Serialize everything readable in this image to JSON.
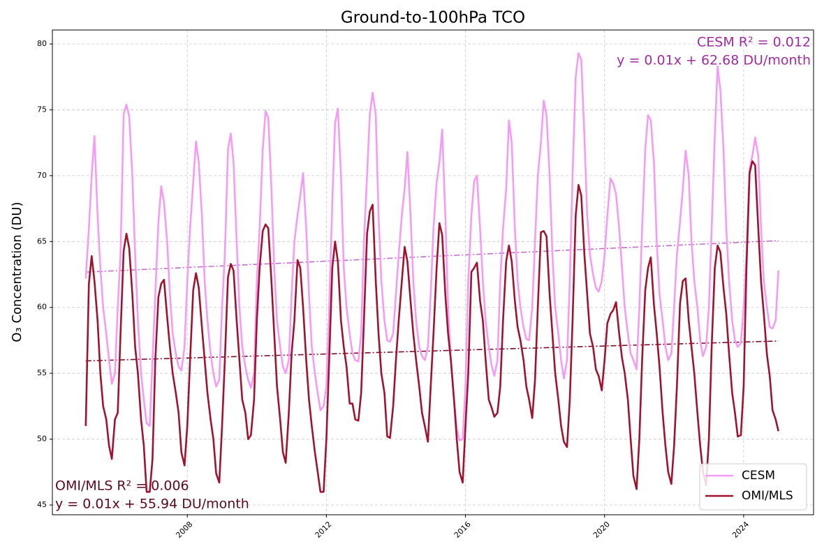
{
  "chart_data": {
    "type": "line",
    "title": "Ground-to-100hPa TCO",
    "y_label": "O₃ Concentration (DU)",
    "xlim": [
      2004.12,
      2026.01
    ],
    "xticks": [
      2008,
      2012,
      2016,
      2020,
      2024
    ],
    "ylim": [
      44.26,
      81.06
    ],
    "yticks": [
      45,
      50,
      55,
      60,
      65,
      70,
      75,
      80
    ],
    "grid": true,
    "legend": "lower right",
    "x": [
      2005.08,
      2005.17,
      2005.25,
      2005.33,
      2005.42,
      2005.5,
      2005.58,
      2005.67,
      2005.75,
      2005.83,
      2005.92,
      2006.0,
      2006.08,
      2006.17,
      2006.25,
      2006.33,
      2006.42,
      2006.5,
      2006.58,
      2006.67,
      2006.75,
      2006.83,
      2006.92,
      2007.0,
      2007.08,
      2007.17,
      2007.25,
      2007.33,
      2007.42,
      2007.5,
      2007.58,
      2007.67,
      2007.75,
      2007.83,
      2007.92,
      2008.0,
      2008.08,
      2008.17,
      2008.25,
      2008.33,
      2008.42,
      2008.5,
      2008.58,
      2008.67,
      2008.75,
      2008.83,
      2008.92,
      2009.0,
      2009.08,
      2009.17,
      2009.25,
      2009.33,
      2009.42,
      2009.5,
      2009.58,
      2009.67,
      2009.75,
      2009.83,
      2009.92,
      2010.0,
      2010.08,
      2010.17,
      2010.25,
      2010.33,
      2010.42,
      2010.5,
      2010.58,
      2010.67,
      2010.75,
      2010.83,
      2010.92,
      2011.0,
      2011.08,
      2011.17,
      2011.25,
      2011.33,
      2011.42,
      2011.5,
      2011.58,
      2011.67,
      2011.75,
      2011.83,
      2011.92,
      2012.0,
      2012.08,
      2012.17,
      2012.25,
      2012.33,
      2012.42,
      2012.5,
      2012.58,
      2012.67,
      2012.75,
      2012.83,
      2012.92,
      2013.0,
      2013.08,
      2013.17,
      2013.25,
      2013.33,
      2013.42,
      2013.5,
      2013.58,
      2013.67,
      2013.75,
      2013.83,
      2013.92,
      2014.0,
      2014.08,
      2014.17,
      2014.25,
      2014.33,
      2014.42,
      2014.5,
      2014.58,
      2014.67,
      2014.75,
      2014.83,
      2014.92,
      2015.0,
      2015.08,
      2015.17,
      2015.25,
      2015.33,
      2015.42,
      2015.5,
      2015.58,
      2015.67,
      2015.75,
      2015.83,
      2015.92,
      2016.0,
      2016.08,
      2016.17,
      2016.25,
      2016.33,
      2016.42,
      2016.5,
      2016.58,
      2016.67,
      2016.75,
      2016.83,
      2016.92,
      2017.0,
      2017.08,
      2017.17,
      2017.25,
      2017.33,
      2017.42,
      2017.5,
      2017.58,
      2017.67,
      2017.75,
      2017.83,
      2017.92,
      2018.0,
      2018.08,
      2018.17,
      2018.25,
      2018.33,
      2018.42,
      2018.5,
      2018.58,
      2018.67,
      2018.75,
      2018.83,
      2018.92,
      2019.0,
      2019.08,
      2019.17,
      2019.25,
      2019.33,
      2019.42,
      2019.5,
      2019.58,
      2019.67,
      2019.75,
      2019.83,
      2019.92,
      2020.0,
      2020.08,
      2020.17,
      2020.25,
      2020.33,
      2020.42,
      2020.5,
      2020.58,
      2020.67,
      2020.75,
      2020.83,
      2020.92,
      2021.0,
      2021.08,
      2021.17,
      2021.25,
      2021.33,
      2021.42,
      2021.5,
      2021.58,
      2021.67,
      2021.75,
      2021.83,
      2021.92,
      2022.0,
      2022.08,
      2022.17,
      2022.25,
      2022.33,
      2022.42,
      2022.5,
      2022.58,
      2022.67,
      2022.75,
      2022.83,
      2022.92,
      2023.0,
      2023.08,
      2023.17,
      2023.25,
      2023.33,
      2023.42,
      2023.5,
      2023.58,
      2023.67,
      2023.75,
      2023.83,
      2023.92,
      2024.0,
      2024.08,
      2024.17,
      2024.25,
      2024.33,
      2024.42,
      2024.5,
      2024.58,
      2024.67,
      2024.75,
      2024.83,
      2024.92,
      2025.0
    ],
    "series": [
      {
        "name": "CESM",
        "color": "#f59bf5",
        "values": [
          62.2,
          66,
          70,
          73.0,
          67,
          63,
          60,
          58,
          56,
          54.2,
          55,
          60,
          64,
          74.7,
          75.4,
          74.5,
          70,
          64,
          59,
          55,
          53,
          51.2,
          51.0,
          56,
          61,
          66.5,
          69.2,
          68,
          65,
          61,
          58,
          56.5,
          55.5,
          55.2,
          57,
          62,
          66,
          69.5,
          72.6,
          71,
          67,
          62,
          59,
          56.5,
          55,
          54,
          54.5,
          60,
          64,
          72,
          73.2,
          71,
          65,
          60,
          57,
          55.5,
          54.5,
          53.9,
          55,
          62,
          66,
          72,
          74.9,
          74.4,
          69,
          63,
          59,
          57,
          55.5,
          55,
          56,
          61,
          65,
          67,
          68.5,
          70.2,
          66,
          61,
          57,
          55,
          53.5,
          52.2,
          52.5,
          54,
          60,
          68,
          74,
          75.1,
          70,
          63,
          60,
          58,
          56.5,
          56,
          55.9,
          58,
          65,
          70,
          74.7,
          76.3,
          74.6,
          67,
          62,
          59,
          57.5,
          57.4,
          58,
          61,
          64,
          67,
          69,
          71.8,
          67,
          62,
          59,
          57,
          56.3,
          56,
          57,
          61,
          66,
          69.5,
          71,
          73.5,
          67,
          60,
          56,
          53,
          50.8,
          49.9,
          50,
          54,
          62,
          67,
          69.6,
          70,
          66,
          62,
          59,
          57,
          55.6,
          54.8,
          56,
          62,
          66,
          69,
          74.2,
          72.5,
          66,
          62,
          60,
          58.5,
          57.6,
          57.5,
          60,
          65,
          70,
          72.5,
          75.7,
          74.6,
          70,
          64,
          60,
          58,
          56,
          54.6,
          56,
          62,
          70,
          77.5,
          79.3,
          78.8,
          73,
          67,
          64,
          62.5,
          61.5,
          61.2,
          62,
          64,
          67,
          69.8,
          69.4,
          68.6,
          66,
          63,
          60,
          58,
          56.5,
          56,
          55.3,
          60,
          66,
          72,
          74.6,
          74.2,
          71,
          65,
          61,
          59,
          57,
          56,
          56.5,
          60,
          64,
          66.5,
          69,
          71.9,
          70,
          65,
          62,
          60,
          57.5,
          56.3,
          57,
          60,
          66,
          73,
          78.3,
          76.5,
          72,
          66,
          62,
          59,
          57.5,
          57,
          57.3,
          60,
          64,
          70.5,
          71.5,
          72.9,
          71.5,
          66,
          62,
          60,
          58.5,
          58.4,
          59,
          62.8
        ],
        "trend": {
          "x": [
            2005.08,
            2025.0
          ],
          "values": [
            62.68,
            65.07
          ],
          "color": "#c36ec8",
          "r2_label": "CESM R² = 0.012",
          "equation": "y = 0.01x + 62.68 DU/month",
          "text_color": "#a02ca0"
        }
      },
      {
        "name": "OMI/MLS",
        "color": "#a0122e",
        "values": [
          51,
          61.8,
          63.9,
          62,
          59,
          55,
          52.5,
          51.5,
          49.5,
          48.5,
          51.5,
          52,
          58,
          64.3,
          65.6,
          64.5,
          61,
          57,
          55,
          51.5,
          49.5,
          46,
          46,
          48.5,
          56,
          60.8,
          61.8,
          62.1,
          59.3,
          57,
          55,
          53.5,
          52,
          49,
          48,
          51,
          56,
          61.3,
          62.6,
          61.5,
          58.5,
          56,
          53.5,
          51.5,
          50,
          47.4,
          46.7,
          51,
          56,
          62.3,
          63.3,
          62.8,
          59,
          56,
          53,
          52,
          50,
          50.3,
          53,
          59,
          63,
          65.8,
          66.3,
          66,
          62,
          58,
          54,
          51.5,
          49,
          48.2,
          52,
          56.5,
          59,
          63.6,
          63,
          60,
          56,
          53,
          51,
          49,
          47.5,
          46,
          46,
          50,
          56,
          63,
          65,
          63.5,
          59,
          57,
          55.5,
          52.7,
          52.7,
          51.5,
          51.4,
          53.5,
          59,
          65.6,
          67.3,
          67.8,
          62,
          58,
          55,
          53.5,
          50.2,
          50.1,
          52.5,
          56,
          59,
          62,
          64.6,
          63.5,
          60.5,
          58,
          56,
          54,
          52,
          51,
          49.8,
          54,
          58,
          63,
          66.4,
          65.5,
          61,
          58,
          56,
          53,
          50,
          47.5,
          46.7,
          51,
          55,
          62.7,
          63,
          63.4,
          60.5,
          59,
          56,
          53,
          52.4,
          51.7,
          52,
          54,
          59,
          63.5,
          64.7,
          63.5,
          60.5,
          58.5,
          57.5,
          56,
          54,
          53,
          51.6,
          54.5,
          60,
          65.7,
          65.8,
          65.4,
          61,
          58,
          55,
          53,
          51,
          49.8,
          49.4,
          53,
          59,
          67,
          69.3,
          68.5,
          64,
          61,
          58,
          57,
          55.3,
          54.8,
          53.7,
          56,
          58.8,
          59.5,
          59.8,
          60.4,
          58,
          56.2,
          55,
          53,
          50,
          47.2,
          46.2,
          50,
          56,
          61.3,
          63,
          63.8,
          60.2,
          58,
          55.5,
          52,
          49.5,
          47.5,
          46.6,
          49.5,
          54,
          60.3,
          62,
          62.2,
          59,
          57,
          55,
          52,
          49.5,
          47.5,
          46.5,
          50,
          57,
          63,
          64.7,
          64.2,
          61.5,
          59.5,
          56.5,
          53.5,
          52,
          50.2,
          50.3,
          54,
          63,
          70.2,
          71.1,
          70.8,
          66,
          62,
          59.5,
          56.4,
          54.8,
          52.2,
          51.5,
          50.6
        ],
        "trend": {
          "x": [
            2005.08,
            2025.0
          ],
          "values": [
            55.94,
            57.45
          ],
          "color": "#7a0f2a",
          "r2_label": "OMI/MLS R² = 0.006",
          "equation": "y = 0.01x + 55.94 DU/month",
          "text_color": "#5a0a1e"
        }
      }
    ]
  }
}
